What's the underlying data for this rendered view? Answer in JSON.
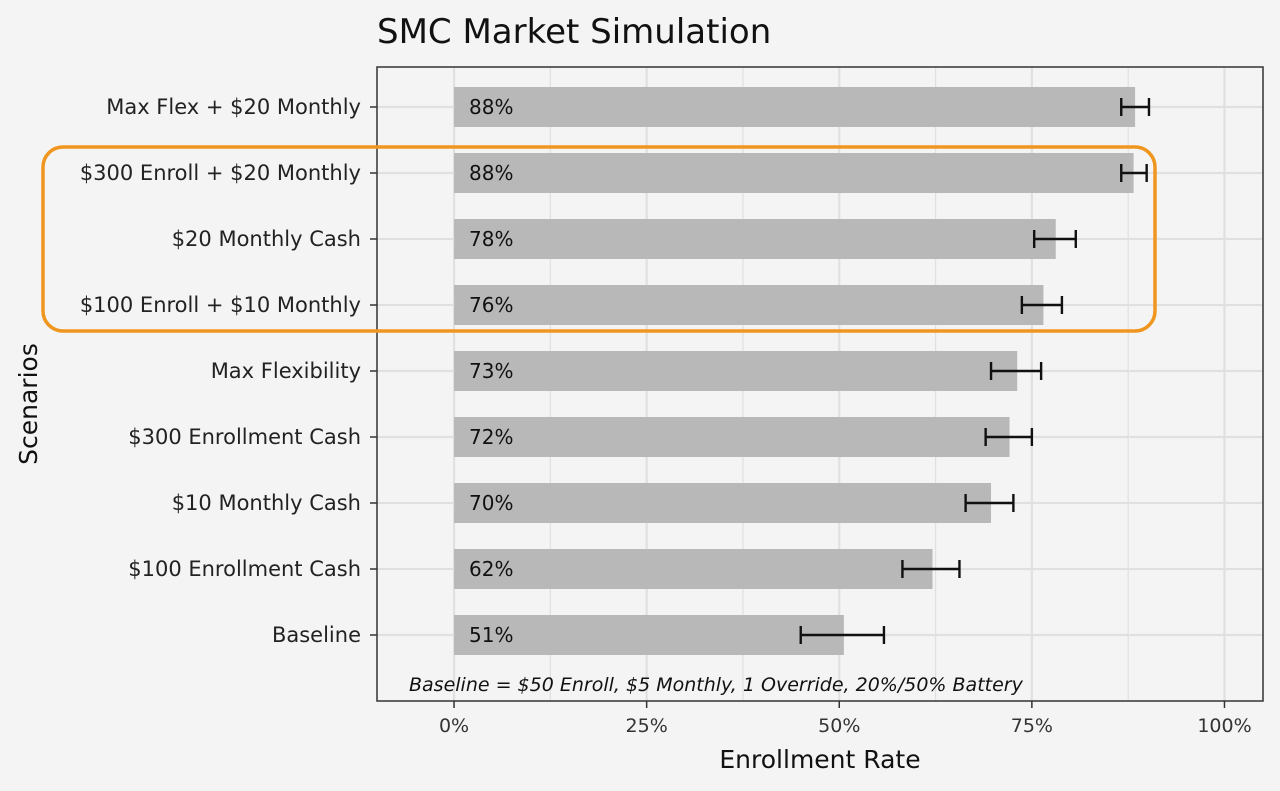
{
  "colors": {
    "background": "#f4f4f4",
    "panel": "#f4f4f4",
    "grid": "#e0e0e0",
    "bar": "#b8b8b8",
    "error_bar": "#111111",
    "highlight": "#f0961e"
  },
  "chart_data": {
    "type": "bar",
    "orientation": "horizontal",
    "title": "SMC Market Simulation",
    "xlabel": "Enrollment Rate",
    "ylabel": "Scenarios",
    "xlim": [
      -0.1,
      1.05
    ],
    "x_ticks": [
      0,
      0.25,
      0.5,
      0.75,
      1.0
    ],
    "x_tick_labels": [
      "0%",
      "25%",
      "50%",
      "75%",
      "100%"
    ],
    "grid": true,
    "categories": [
      "Max Flex + $20 Monthly",
      "$300 Enroll + $20 Monthly",
      "$20 Monthly Cash",
      "$100 Enroll + $10 Monthly",
      "Max Flexibility",
      "$300 Enrollment Cash",
      "$10 Monthly Cash",
      "$100 Enrollment Cash",
      "Baseline"
    ],
    "values": [
      0.884,
      0.882,
      0.781,
      0.765,
      0.731,
      0.721,
      0.697,
      0.621,
      0.506
    ],
    "data_labels": [
      "88%",
      "88%",
      "78%",
      "76%",
      "73%",
      "72%",
      "70%",
      "62%",
      "51%"
    ],
    "error_low": [
      0.866,
      0.866,
      0.753,
      0.737,
      0.697,
      0.69,
      0.664,
      0.582,
      0.45
    ],
    "error_high": [
      0.902,
      0.899,
      0.807,
      0.789,
      0.762,
      0.75,
      0.726,
      0.656,
      0.558
    ],
    "highlighted_categories": [
      "$300 Enroll + $20 Monthly",
      "$20 Monthly Cash",
      "$100 Enroll + $10 Monthly"
    ],
    "annotation": "Baseline = $50 Enroll, $5 Monthly, 1 Override, 20%/50% Battery"
  }
}
